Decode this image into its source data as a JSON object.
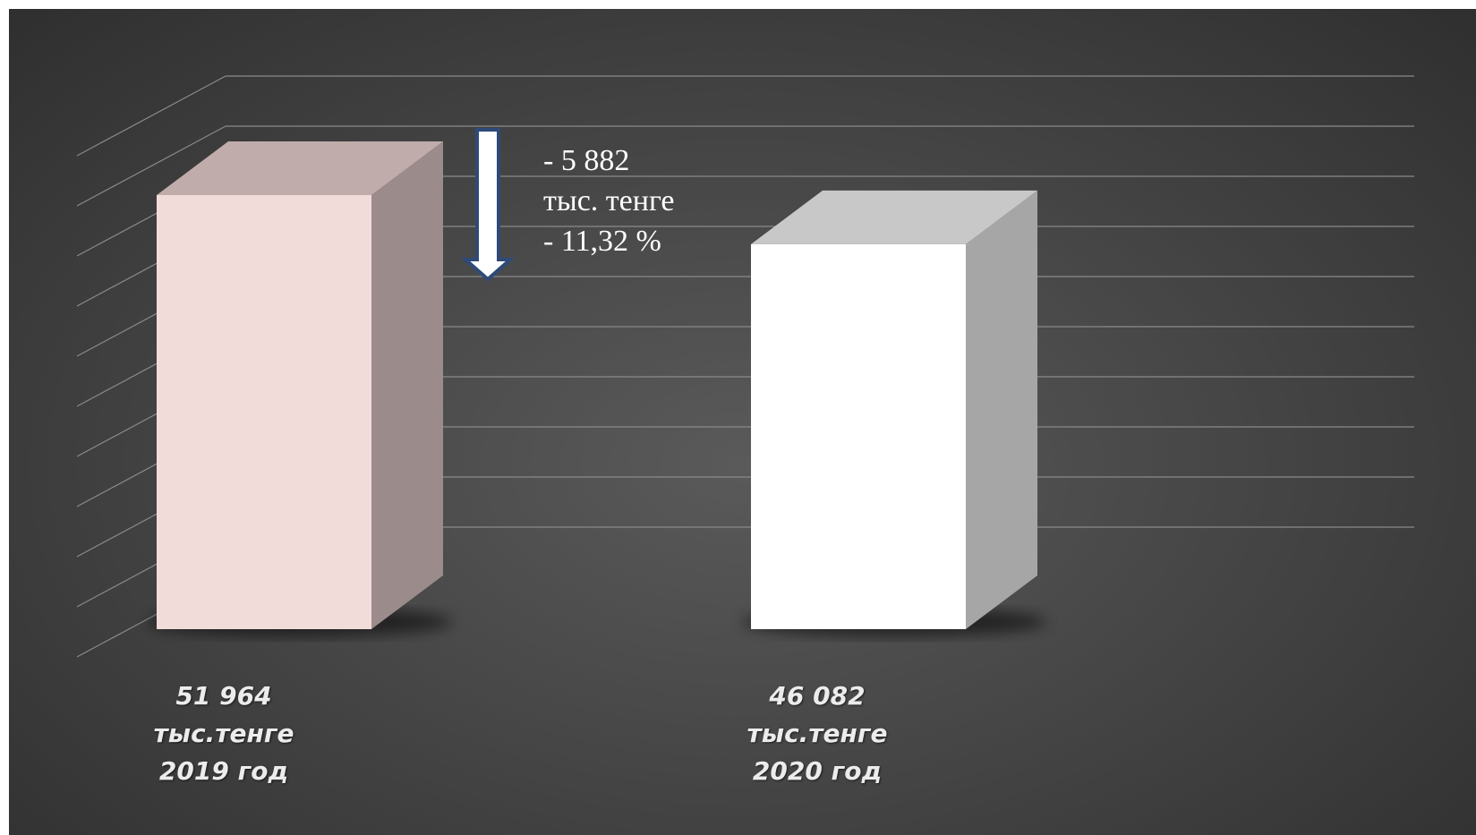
{
  "chart_data": {
    "type": "bar",
    "style": "3d-column",
    "title": "",
    "xlabel": "",
    "ylabel": "",
    "categories": [
      "2019 год",
      "2020 год"
    ],
    "values": [
      51964,
      46082
    ],
    "ylim": [
      0,
      60000
    ],
    "grid": true,
    "legend": "none",
    "bars": [
      {
        "value_label": "51 964",
        "unit_label": "тыс.тенге",
        "year_label": "2019 год",
        "front_color": "#f2dcda",
        "side_color": "#9b8c8b",
        "top_color": "#c0adab"
      },
      {
        "value_label": "46 082",
        "unit_label": "тыс.тенге",
        "year_label": "2020 год",
        "front_color": "#ffffff",
        "side_color": "#a6a6a6",
        "top_color": "#c8c8c8"
      }
    ],
    "annotation": {
      "line1": "- 5 882",
      "line2": "тыс. тенге",
      "line3": "- 11,32 %",
      "arrow": "down-arrow-icon",
      "arrow_color": "#2e4a78"
    },
    "background_color": "#474747",
    "gridline_color": "#8a8a8a"
  }
}
